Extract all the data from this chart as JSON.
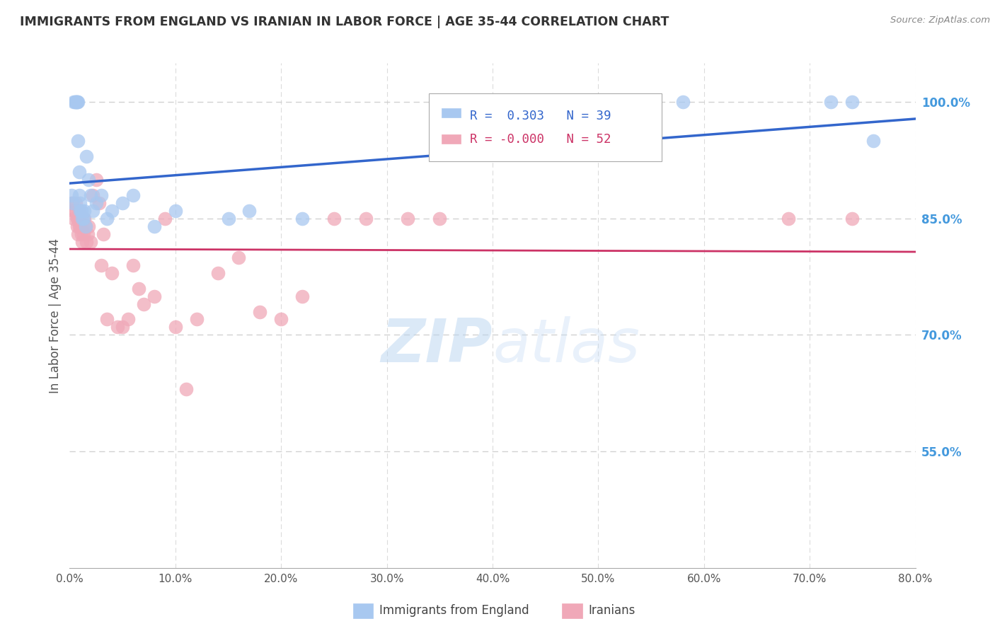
{
  "title": "IMMIGRANTS FROM ENGLAND VS IRANIAN IN LABOR FORCE | AGE 35-44 CORRELATION CHART",
  "source": "Source: ZipAtlas.com",
  "ylabel": "In Labor Force | Age 35-44",
  "xlim": [
    0.0,
    0.8
  ],
  "ylim": [
    0.4,
    1.05
  ],
  "xticks": [
    0.0,
    0.1,
    0.2,
    0.3,
    0.4,
    0.5,
    0.6,
    0.7,
    0.8
  ],
  "yticks_right": [
    0.55,
    0.7,
    0.85,
    1.0
  ],
  "ytick_labels_right": [
    "55.0%",
    "70.0%",
    "85.0%",
    "100.0%"
  ],
  "xtick_labels": [
    "0.0%",
    "10.0%",
    "20.0%",
    "30.0%",
    "40.0%",
    "50.0%",
    "60.0%",
    "70.0%",
    "80.0%"
  ],
  "england_R": 0.303,
  "england_N": 39,
  "iranian_R": -0.0,
  "iranian_N": 52,
  "legend_label_england": "Immigrants from England",
  "legend_label_iranian": "Iranians",
  "england_color": "#a8c8f0",
  "iranian_color": "#f0a8b8",
  "england_line_color": "#3366cc",
  "iranian_line_color": "#cc3366",
  "watermark_zip": "ZIP",
  "watermark_atlas": "atlas",
  "background_color": "#ffffff",
  "grid_color": "#cccccc",
  "title_color": "#333333",
  "right_axis_color": "#4499dd",
  "england_x": [
    0.002,
    0.003,
    0.004,
    0.005,
    0.006,
    0.006,
    0.007,
    0.007,
    0.008,
    0.008,
    0.009,
    0.009,
    0.01,
    0.01,
    0.011,
    0.011,
    0.012,
    0.013,
    0.014,
    0.015,
    0.016,
    0.018,
    0.02,
    0.022,
    0.025,
    0.03,
    0.035,
    0.04,
    0.05,
    0.06,
    0.08,
    0.1,
    0.15,
    0.17,
    0.22,
    0.58,
    0.72,
    0.74,
    0.76
  ],
  "england_y": [
    0.88,
    0.87,
    1.0,
    1.0,
    1.0,
    1.0,
    1.0,
    1.0,
    1.0,
    0.95,
    0.91,
    0.88,
    0.87,
    0.86,
    0.86,
    0.86,
    0.85,
    0.85,
    0.86,
    0.84,
    0.93,
    0.9,
    0.88,
    0.86,
    0.87,
    0.88,
    0.85,
    0.86,
    0.87,
    0.88,
    0.84,
    0.86,
    0.85,
    0.86,
    0.85,
    1.0,
    1.0,
    1.0,
    0.95
  ],
  "iranian_x": [
    0.002,
    0.003,
    0.004,
    0.005,
    0.006,
    0.007,
    0.007,
    0.008,
    0.008,
    0.009,
    0.009,
    0.01,
    0.01,
    0.011,
    0.012,
    0.012,
    0.013,
    0.014,
    0.015,
    0.016,
    0.017,
    0.018,
    0.02,
    0.022,
    0.025,
    0.028,
    0.03,
    0.032,
    0.035,
    0.04,
    0.045,
    0.05,
    0.055,
    0.06,
    0.065,
    0.07,
    0.08,
    0.09,
    0.1,
    0.11,
    0.12,
    0.14,
    0.16,
    0.18,
    0.2,
    0.22,
    0.25,
    0.28,
    0.32,
    0.35,
    0.68,
    0.74
  ],
  "iranian_y": [
    0.87,
    0.86,
    0.85,
    0.86,
    0.87,
    0.84,
    0.85,
    0.83,
    0.85,
    0.84,
    0.86,
    0.84,
    0.85,
    0.83,
    0.82,
    0.84,
    0.83,
    0.85,
    0.84,
    0.82,
    0.83,
    0.84,
    0.82,
    0.88,
    0.9,
    0.87,
    0.79,
    0.83,
    0.72,
    0.78,
    0.71,
    0.71,
    0.72,
    0.79,
    0.76,
    0.74,
    0.75,
    0.85,
    0.71,
    0.63,
    0.72,
    0.78,
    0.8,
    0.73,
    0.72,
    0.75,
    0.85,
    0.85,
    0.85,
    0.85,
    0.85,
    0.85
  ]
}
